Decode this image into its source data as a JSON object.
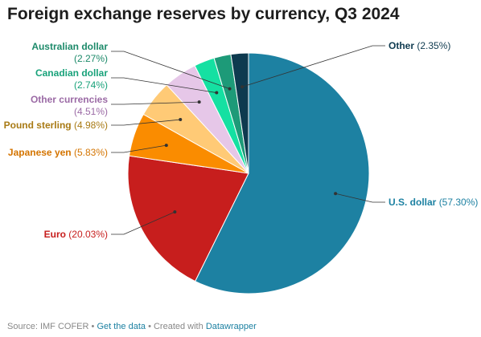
{
  "title": "Foreign exchange reserves by currency, Q3 2024",
  "chart_data": {
    "type": "pie",
    "title": "Foreign exchange reserves by currency, Q3 2024",
    "unit": "%",
    "slices": [
      {
        "label": "U.S. dollar",
        "value_text": "(57.30%)",
        "value": 57.3,
        "color": "#1d81a2",
        "label_color": "#1d81a2"
      },
      {
        "label": "Euro",
        "value_text": "(20.03%)",
        "value": 20.03,
        "color": "#c71e1d",
        "label_color": "#c71e1d"
      },
      {
        "label": "Japanese yen",
        "value_text": "(5.83%)",
        "value": 5.83,
        "color": "#fa8c00",
        "label_color": "#d47400"
      },
      {
        "label": "Pound sterling",
        "value_text": "(4.98%)",
        "value": 4.98,
        "color": "#ffca76",
        "label_color": "#a87a14"
      },
      {
        "label": "Other currencies",
        "value_text": "(4.51%)",
        "value": 4.51,
        "color": "#e6c7e8",
        "label_color": "#9b6aa5"
      },
      {
        "label": "Canadian dollar",
        "value_text": "(2.74%)",
        "value": 2.74,
        "color": "#15e0a2",
        "label_color": "#18a27a"
      },
      {
        "label": "Australian dollar",
        "value_text": "(2.27%)",
        "value": 2.27,
        "color": "#1d9a78",
        "label_color": "#1d8a6a"
      },
      {
        "label": "Other",
        "value_text": "(2.35%)",
        "value": 2.35,
        "color": "#0e3a4f",
        "label_color": "#0e3a4f"
      }
    ]
  },
  "footer": {
    "source": "Source: IMF COFER",
    "get_data": "Get the data",
    "created_with": "Created with",
    "datawrapper": "Datawrapper",
    "separator": "•"
  }
}
